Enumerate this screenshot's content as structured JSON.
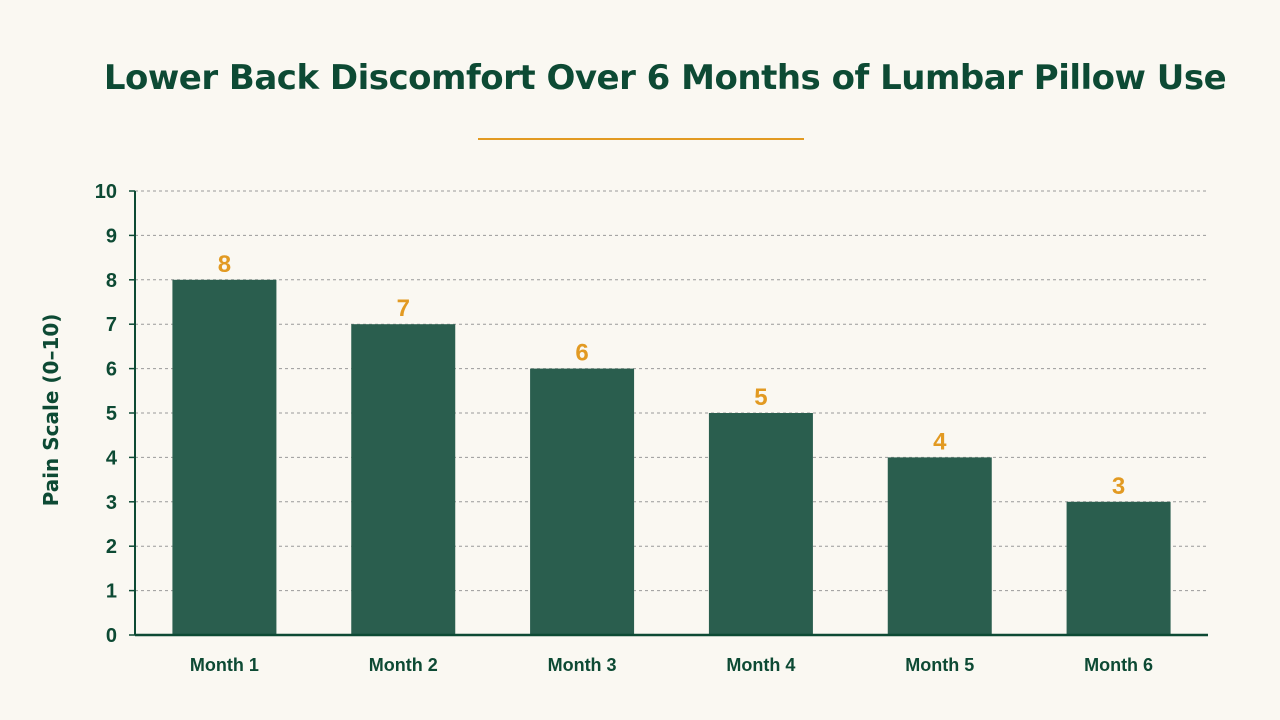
{
  "chart_data": {
    "type": "bar",
    "title": "Lower Back Discomfort Over 6 Months of Lumbar Pillow Use",
    "xlabel": "",
    "ylabel": "Pain Scale (0–10)",
    "categories": [
      "Month 1",
      "Month 2",
      "Month 3",
      "Month 4",
      "Month 5",
      "Month 6"
    ],
    "values": [
      8,
      7,
      6,
      5,
      4,
      3
    ],
    "ylim": [
      0,
      10
    ],
    "yticks": [
      0,
      1,
      2,
      3,
      4,
      5,
      6,
      7,
      8,
      9,
      10
    ],
    "grid": true,
    "data_labels": true,
    "colors": {
      "bar": "#2a5e4e",
      "title": "#0d4a34",
      "accent": "#e29a22",
      "axis": "#0d4a34",
      "grid": "#9a9a9a",
      "background": "#faf8f2"
    }
  }
}
